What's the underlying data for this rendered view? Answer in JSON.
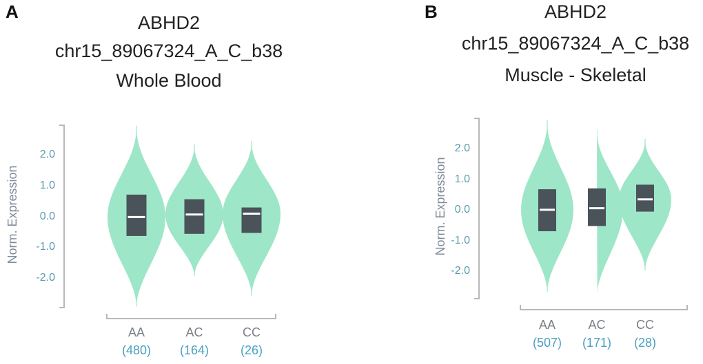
{
  "panels": [
    {
      "letter": "A",
      "title_lines": [
        "ABHD2",
        "chr15_89067324_A_C_b38",
        "Whole Blood"
      ]
    },
    {
      "letter": "B",
      "title_lines": [
        "ABHD2",
        "chr15_89067324_A_C_b38",
        "Muscle - Skeletal"
      ]
    }
  ],
  "colors": {
    "violin": "#9ee6c8",
    "box": "#4a525a",
    "median": "#ffffff",
    "tick_text": "#5a9aae",
    "count_text": "#4aa0c0"
  },
  "chart_data": [
    {
      "type": "violin",
      "title": "ABHD2 chr15_89067324_A_C_b38 Whole Blood",
      "ylabel": "Norm. Expression",
      "yticks": [
        "2.0",
        "1.0",
        "0.0",
        "-1.0",
        "-2.0"
      ],
      "ylim": [
        -3.0,
        3.0
      ],
      "categories": [
        "AA",
        "AC",
        "CC"
      ],
      "counts": [
        "(480)",
        "(164)",
        "(26)"
      ],
      "violins": [
        {
          "min": -2.95,
          "max": 2.95,
          "q1": -0.65,
          "median": -0.03,
          "q3": 0.7
        },
        {
          "min": -1.95,
          "max": 2.35,
          "q1": -0.58,
          "median": 0.05,
          "q3": 0.55
        },
        {
          "min": -2.6,
          "max": 2.45,
          "q1": -0.55,
          "median": 0.08,
          "q3": 0.28
        }
      ]
    },
    {
      "type": "violin",
      "title": "ABHD2 chr15_89067324_A_C_b38 Muscle - Skeletal",
      "ylabel": "Norm. Expression",
      "yticks": [
        "2.0",
        "1.0",
        "0.0",
        "-1.0",
        "-2.0"
      ],
      "ylim": [
        -3.0,
        2.9
      ],
      "categories": [
        "AA",
        "AC",
        "CC"
      ],
      "counts": [
        "(507)",
        "(171)",
        "(28)"
      ],
      "violins": [
        {
          "min": -2.7,
          "max": 2.9,
          "q1": -0.72,
          "median": -0.02,
          "q3": 0.65
        },
        {
          "min": -2.85,
          "max": 2.6,
          "q1": -0.55,
          "median": 0.03,
          "q3": 0.68
        },
        {
          "min": -2.0,
          "max": 2.3,
          "q1": -0.08,
          "median": 0.32,
          "q3": 0.8
        }
      ]
    }
  ]
}
